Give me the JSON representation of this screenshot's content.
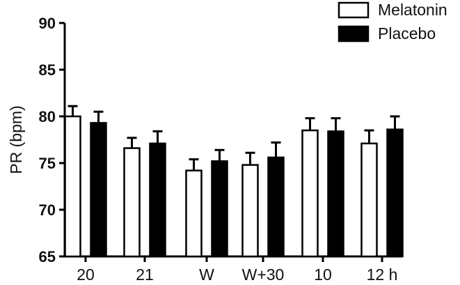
{
  "chart_data": {
    "type": "bar",
    "categories": [
      "20",
      "21",
      "W",
      "W+30",
      "10",
      "12 h"
    ],
    "series": [
      {
        "name": "Melatonin",
        "values": [
          80.0,
          76.6,
          74.2,
          74.8,
          78.5,
          77.1
        ],
        "errors": [
          1.1,
          1.1,
          1.2,
          1.3,
          1.3,
          1.4
        ],
        "fill": "#ffffff",
        "stroke": "#000000"
      },
      {
        "name": "Placebo",
        "values": [
          79.3,
          77.1,
          75.2,
          75.6,
          78.4,
          78.6
        ],
        "errors": [
          1.2,
          1.3,
          1.2,
          1.6,
          1.4,
          1.4
        ],
        "fill": "#000000",
        "stroke": "#000000"
      }
    ],
    "title": "",
    "xlabel": "",
    "ylabel": "PR (bpm)",
    "ylim": [
      65,
      90
    ],
    "yticks": [
      "65",
      "70",
      "75",
      "80",
      "85",
      "90"
    ],
    "grid": false,
    "legend_position": "top-right",
    "error_bars": "upper only"
  }
}
